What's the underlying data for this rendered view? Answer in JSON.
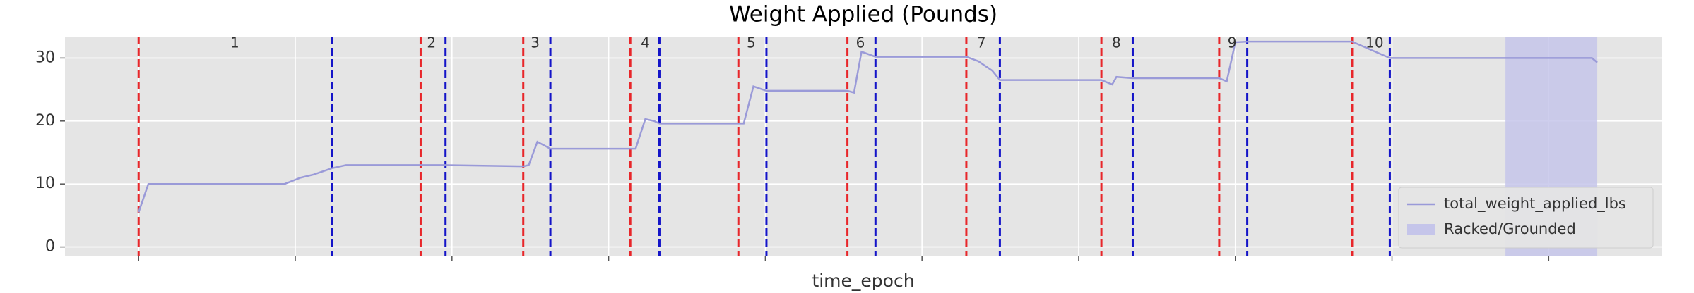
{
  "chart_data": {
    "type": "line",
    "title": "Weight Applied (Pounds)",
    "xlabel": "time_epoch",
    "xlim": [
      -0.47,
      9.72
    ],
    "ylim": [
      -1.5,
      33.4
    ],
    "xticks": [
      0,
      1,
      2,
      3,
      4,
      5,
      6,
      7,
      8,
      9
    ],
    "yticks": [
      0,
      10,
      20,
      30
    ],
    "grid": true,
    "legend": "lower right",
    "series": [
      {
        "name": "total_weight_applied_lbs",
        "color": "#9a9ad8",
        "x": [
          0,
          0.062,
          0.931,
          1.034,
          1.117,
          1.234,
          1.324,
          1.959,
          2.455,
          2.49,
          2.545,
          2.628,
          3.172,
          3.234,
          3.29,
          3.324,
          3.862,
          3.924,
          4.007,
          4.524,
          4.566,
          4.614,
          4.703,
          5.283,
          5.359,
          5.448,
          5.497,
          6.145,
          6.214,
          6.241,
          6.345,
          6.897,
          6.945,
          7.0,
          7.076,
          7.745,
          7.986,
          9.276,
          9.31
        ],
        "values": [
          5.5,
          10,
          10,
          11,
          11.5,
          12.5,
          13,
          13,
          12.8,
          13,
          16.7,
          15.6,
          15.6,
          20.3,
          20,
          19.6,
          19.6,
          25.5,
          24.8,
          24.8,
          24.5,
          31,
          30.2,
          30.2,
          29.5,
          28,
          26.5,
          26.5,
          25.8,
          27,
          26.8,
          26.8,
          26.3,
          32.5,
          32.6,
          32.6,
          30,
          30,
          29.3
        ]
      }
    ],
    "spans": [
      {
        "name": "Racked/Grounded",
        "color": "#c5c5ea",
        "x": [
          8.724,
          9.31
        ]
      }
    ],
    "vlines": [
      {
        "color": "#e8262a",
        "x": [
          0,
          1.8,
          2.455,
          3.138,
          3.828,
          4.524,
          5.283,
          6.145,
          6.897,
          7.745
        ]
      },
      {
        "color": "#1414c8",
        "x": [
          1.234,
          1.959,
          2.628,
          3.324,
          4.007,
          4.703,
          5.497,
          6.345,
          7.076,
          7.986
        ]
      }
    ],
    "annotations": [
      {
        "text": "1",
        "x": 0.614
      },
      {
        "text": "2",
        "x": 1.869
      },
      {
        "text": "3",
        "x": 2.531
      },
      {
        "text": "4",
        "x": 3.234
      },
      {
        "text": "5",
        "x": 3.91
      },
      {
        "text": "6",
        "x": 4.607
      },
      {
        "text": "7",
        "x": 5.379
      },
      {
        "text": "8",
        "x": 6.241
      },
      {
        "text": "9",
        "x": 6.979
      },
      {
        "text": "10",
        "x": 7.889
      }
    ]
  }
}
